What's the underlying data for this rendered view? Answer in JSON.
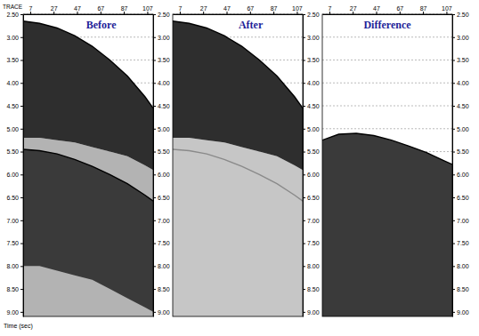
{
  "chart_data": [
    {
      "type": "area",
      "title": "Before",
      "xlabel": "TRACE",
      "ylabel": "Time (sec)",
      "grid": true,
      "xlim": [
        1,
        112
      ],
      "ylim": [
        2.5,
        9.1
      ],
      "xticks": [
        7,
        27,
        47,
        67,
        87,
        107
      ],
      "yticks": [
        {
          "value": 2.5,
          "label": "2.50"
        },
        {
          "value": 3,
          "label": "3.00"
        },
        {
          "value": 3.5,
          "label": "3.50"
        },
        {
          "value": 4,
          "label": "4.00"
        },
        {
          "value": 4.5,
          "label": "4.50"
        },
        {
          "value": 5,
          "label": "5.00"
        },
        {
          "value": 5.5,
          "label": "5.50"
        },
        {
          "value": 6,
          "label": "6.00"
        },
        {
          "value": 6.5,
          "label": "6.50"
        },
        {
          "value": 7,
          "label": "7.00"
        },
        {
          "value": 7.5,
          "label": "7.50"
        },
        {
          "value": 8,
          "label": "8.00"
        },
        {
          "value": 8.5,
          "label": "8.50"
        },
        {
          "value": 9,
          "label": "9.00"
        }
      ],
      "x": [
        1,
        15,
        30,
        45,
        60,
        75,
        90,
        105,
        112
      ],
      "series": [
        {
          "type": "area",
          "color": "#b3b3b3",
          "values": [
            5.2,
            5.2,
            5.25,
            5.3,
            5.4,
            5.5,
            5.6,
            5.8,
            5.9
          ],
          "base": [
            9.1,
            9.1,
            9.1,
            9.1,
            9.1,
            9.1,
            9.1,
            9.1,
            9.1
          ]
        },
        {
          "type": "area",
          "color": "#2e2e2e",
          "values": [
            2.65,
            2.7,
            2.8,
            2.97,
            3.2,
            3.5,
            3.85,
            4.3,
            4.55
          ],
          "base": [
            5.2,
            5.2,
            5.25,
            5.3,
            5.4,
            5.5,
            5.6,
            5.8,
            5.9
          ]
        },
        {
          "type": "area",
          "color": "#3a3a3a",
          "values": [
            5.45,
            5.48,
            5.55,
            5.67,
            5.82,
            6.0,
            6.2,
            6.45,
            6.58
          ],
          "base": [
            8.0,
            8.0,
            8.1,
            8.2,
            8.3,
            8.5,
            8.7,
            8.9,
            9.0
          ]
        },
        {
          "type": "line",
          "color": "#000000",
          "values": [
            2.65,
            2.7,
            2.8,
            2.97,
            3.2,
            3.5,
            3.85,
            4.3,
            4.55
          ]
        },
        {
          "type": "line",
          "color": "#000000",
          "values": [
            5.45,
            5.48,
            5.55,
            5.67,
            5.82,
            6.0,
            6.2,
            6.45,
            6.58
          ]
        }
      ]
    },
    {
      "type": "area",
      "title": "After",
      "grid": true,
      "xlim": [
        1,
        112
      ],
      "ylim": [
        2.5,
        9.1
      ],
      "xticks": [
        7,
        27,
        47,
        67,
        87,
        107
      ],
      "yticks": [
        {
          "value": 2.5,
          "label": "2.50"
        },
        {
          "value": 3,
          "label": "3.00"
        },
        {
          "value": 3.5,
          "label": "3.50"
        },
        {
          "value": 4,
          "label": "4.00"
        },
        {
          "value": 4.5,
          "label": "4.50"
        },
        {
          "value": 5,
          "label": "5.00"
        },
        {
          "value": 5.5,
          "label": "5.50"
        },
        {
          "value": 6,
          "label": "6.00"
        },
        {
          "value": 6.5,
          "label": "6.50"
        },
        {
          "value": 7,
          "label": "7.00"
        },
        {
          "value": 7.5,
          "label": "7.50"
        },
        {
          "value": 8,
          "label": "8.00"
        },
        {
          "value": 8.5,
          "label": "8.50"
        },
        {
          "value": 9,
          "label": "9.00"
        }
      ],
      "x": [
        1,
        15,
        30,
        45,
        60,
        75,
        90,
        105,
        112
      ],
      "series": [
        {
          "type": "area",
          "color": "#c6c6c6",
          "values": [
            5.2,
            5.2,
            5.25,
            5.3,
            5.4,
            5.5,
            5.6,
            5.8,
            5.9
          ],
          "base": [
            9.1,
            9.1,
            9.1,
            9.1,
            9.1,
            9.1,
            9.1,
            9.1,
            9.1
          ]
        },
        {
          "type": "area",
          "color": "#2e2e2e",
          "values": [
            2.65,
            2.7,
            2.8,
            2.97,
            3.2,
            3.5,
            3.85,
            4.3,
            4.55
          ],
          "base": [
            5.2,
            5.2,
            5.25,
            5.3,
            5.4,
            5.5,
            5.6,
            5.8,
            5.9
          ]
        },
        {
          "type": "line",
          "color": "#000000",
          "values": [
            2.65,
            2.7,
            2.8,
            2.97,
            3.2,
            3.5,
            3.85,
            4.3,
            4.55
          ]
        },
        {
          "type": "line",
          "color": "#8a8a8a",
          "values": [
            5.45,
            5.48,
            5.55,
            5.67,
            5.82,
            6.0,
            6.2,
            6.45,
            6.58
          ]
        }
      ]
    },
    {
      "type": "area",
      "title": "Difference",
      "grid": true,
      "xlim": [
        1,
        112
      ],
      "ylim": [
        2.5,
        9.1
      ],
      "xticks": [
        7,
        27,
        47,
        67,
        87,
        107
      ],
      "yticks": [
        {
          "value": 2.5,
          "label": "2.50"
        },
        {
          "value": 3,
          "label": "3.00"
        },
        {
          "value": 3.5,
          "label": "3.50"
        },
        {
          "value": 4,
          "label": "4.00"
        },
        {
          "value": 4.5,
          "label": "4.50"
        },
        {
          "value": 5,
          "label": "5.00"
        },
        {
          "value": 5.5,
          "label": "5.50"
        },
        {
          "value": 6,
          "label": "6.00"
        },
        {
          "value": 6.5,
          "label": "6.50"
        },
        {
          "value": 7,
          "label": "7.00"
        },
        {
          "value": 7.5,
          "label": "7.50"
        },
        {
          "value": 8,
          "label": "8.00"
        },
        {
          "value": 8.5,
          "label": "8.50"
        },
        {
          "value": 9,
          "label": "9.00"
        }
      ],
      "x": [
        1,
        15,
        30,
        45,
        60,
        75,
        90,
        105,
        112
      ],
      "series": [
        {
          "type": "area",
          "color": "#3a3a3a",
          "values": [
            5.25,
            5.12,
            5.1,
            5.15,
            5.25,
            5.38,
            5.52,
            5.7,
            5.78
          ],
          "base": [
            9.1,
            9.1,
            9.1,
            9.1,
            9.1,
            9.1,
            9.1,
            9.1,
            9.1
          ]
        },
        {
          "type": "line",
          "color": "#000000",
          "values": [
            5.25,
            5.12,
            5.1,
            5.15,
            5.25,
            5.38,
            5.52,
            5.7,
            5.78
          ]
        }
      ]
    }
  ]
}
